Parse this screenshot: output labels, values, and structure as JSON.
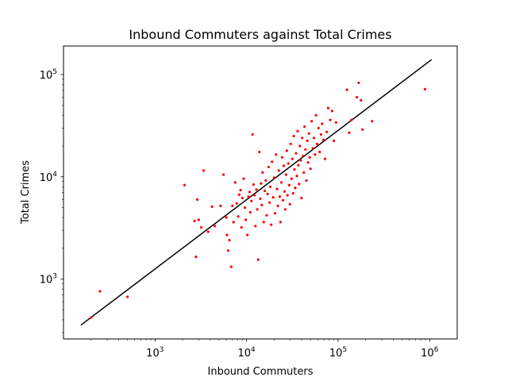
{
  "chart_data": {
    "type": "scatter",
    "title": "Inbound Commuters against Total Crimes",
    "xlabel": "Inbound Commuters",
    "ylabel": "Total Crimes",
    "xscale": "log",
    "yscale": "log",
    "xlim": [
      100,
      2000000
    ],
    "ylim": [
      260,
      190000
    ],
    "x_ticks": [
      {
        "value": 1000,
        "base": "10",
        "exp": "3"
      },
      {
        "value": 10000,
        "base": "10",
        "exp": "4"
      },
      {
        "value": 100000,
        "base": "10",
        "exp": "5"
      },
      {
        "value": 1000000,
        "base": "10",
        "exp": "6"
      }
    ],
    "y_ticks": [
      {
        "value": 1000,
        "base": "10",
        "exp": "3"
      },
      {
        "value": 10000,
        "base": "10",
        "exp": "4"
      },
      {
        "value": 100000,
        "base": "10",
        "exp": "5"
      }
    ],
    "grid": false,
    "colors": {
      "points": "#ff0000",
      "fit_line": "#000000",
      "axes": "#000000"
    },
    "fit_line": {
      "x": [
        155,
        1050000
      ],
      "y": [
        355,
        140000
      ]
    },
    "points": [
      [
        200,
        420
      ],
      [
        250,
        760
      ],
      [
        500,
        670
      ],
      [
        2100,
        8300
      ],
      [
        2800,
        1650
      ],
      [
        2900,
        6000
      ],
      [
        3400,
        11500
      ],
      [
        3000,
        3800
      ],
      [
        2700,
        3700
      ],
      [
        3200,
        3200
      ],
      [
        3800,
        2900
      ],
      [
        4200,
        5100
      ],
      [
        4500,
        3300
      ],
      [
        5600,
        10500
      ],
      [
        5200,
        5200
      ],
      [
        6100,
        2700
      ],
      [
        6300,
        1900
      ],
      [
        6800,
        1320
      ],
      [
        6500,
        2400
      ],
      [
        6000,
        4000
      ],
      [
        7000,
        5200
      ],
      [
        7200,
        3600
      ],
      [
        7500,
        8800
      ],
      [
        7800,
        5500
      ],
      [
        8100,
        4100
      ],
      [
        8300,
        6700
      ],
      [
        8600,
        7400
      ],
      [
        8800,
        3200
      ],
      [
        9000,
        6200
      ],
      [
        9300,
        9600
      ],
      [
        9600,
        5000
      ],
      [
        9800,
        3800
      ],
      [
        10200,
        2700
      ],
      [
        10500,
        6400
      ],
      [
        10800,
        7100
      ],
      [
        11000,
        4500
      ],
      [
        11300,
        5800
      ],
      [
        11600,
        26000
      ],
      [
        11900,
        8400
      ],
      [
        12200,
        6600
      ],
      [
        12500,
        3300
      ],
      [
        12800,
        7500
      ],
      [
        13100,
        4800
      ],
      [
        13400,
        1550
      ],
      [
        13800,
        17500
      ],
      [
        14100,
        6100
      ],
      [
        14400,
        8600
      ],
      [
        14700,
        5300
      ],
      [
        15000,
        11000
      ],
      [
        15400,
        3600
      ],
      [
        15800,
        7300
      ],
      [
        16200,
        9200
      ],
      [
        16600,
        4200
      ],
      [
        17000,
        6800
      ],
      [
        17400,
        12500
      ],
      [
        17800,
        5600
      ],
      [
        18200,
        8000
      ],
      [
        18600,
        3400
      ],
      [
        19000,
        14000
      ],
      [
        19500,
        6300
      ],
      [
        20000,
        9800
      ],
      [
        20500,
        4400
      ],
      [
        21000,
        16500
      ],
      [
        21500,
        7600
      ],
      [
        22000,
        5200
      ],
      [
        22500,
        11500
      ],
      [
        23000,
        6400
      ],
      [
        23500,
        3600
      ],
      [
        24000,
        8800
      ],
      [
        24500,
        15500
      ],
      [
        25000,
        5900
      ],
      [
        25500,
        12800
      ],
      [
        26000,
        7200
      ],
      [
        26500,
        4800
      ],
      [
        27000,
        10500
      ],
      [
        27500,
        18000
      ],
      [
        28000,
        6600
      ],
      [
        28600,
        13500
      ],
      [
        29200,
        8300
      ],
      [
        29800,
        5400
      ],
      [
        30400,
        21000
      ],
      [
        31000,
        9600
      ],
      [
        31600,
        15000
      ],
      [
        32200,
        6900
      ],
      [
        32800,
        25000
      ],
      [
        33400,
        11800
      ],
      [
        34000,
        7800
      ],
      [
        34700,
        17000
      ],
      [
        35400,
        10200
      ],
      [
        36100,
        28000
      ],
      [
        36800,
        13000
      ],
      [
        37500,
        8500
      ],
      [
        38200,
        20000
      ],
      [
        39000,
        14500
      ],
      [
        39800,
        6200
      ],
      [
        40600,
        24000
      ],
      [
        41400,
        16000
      ],
      [
        42200,
        11000
      ],
      [
        43000,
        31000
      ],
      [
        44000,
        18500
      ],
      [
        45000,
        9200
      ],
      [
        46000,
        22500
      ],
      [
        47000,
        13800
      ],
      [
        48000,
        26500
      ],
      [
        49000,
        15500
      ],
      [
        50000,
        12000
      ],
      [
        51500,
        35000
      ],
      [
        53000,
        19000
      ],
      [
        54500,
        24000
      ],
      [
        56000,
        16500
      ],
      [
        57500,
        40000
      ],
      [
        59000,
        21000
      ],
      [
        61000,
        30000
      ],
      [
        63000,
        17500
      ],
      [
        65000,
        26000
      ],
      [
        67000,
        33000
      ],
      [
        69000,
        23000
      ],
      [
        72000,
        15000
      ],
      [
        75000,
        27500
      ],
      [
        78000,
        47000
      ],
      [
        82000,
        36000
      ],
      [
        86000,
        44000
      ],
      [
        90000,
        22500
      ],
      [
        95000,
        34000
      ],
      [
        125000,
        71000
      ],
      [
        132000,
        27000
      ],
      [
        140000,
        36000
      ],
      [
        160000,
        60000
      ],
      [
        168000,
        83000
      ],
      [
        178000,
        56000
      ],
      [
        185000,
        29000
      ],
      [
        235000,
        35000
      ],
      [
        890000,
        72000
      ]
    ]
  }
}
